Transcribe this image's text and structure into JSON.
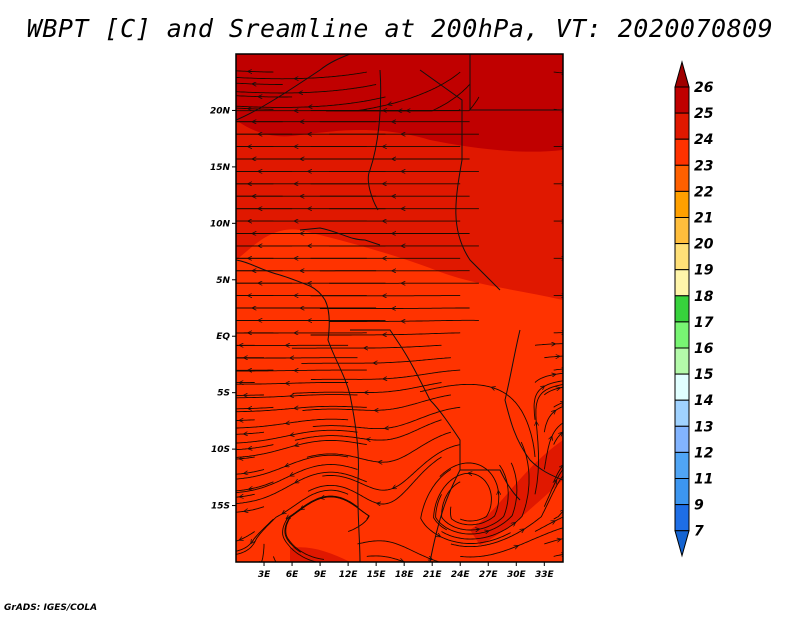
{
  "chart_data": {
    "type": "heatmap",
    "overlay": "streamlines",
    "title": "WBPT [C] and Sreamline at 200hPa, VT: 2020070809",
    "xlabel": "",
    "ylabel": "",
    "xlim": [
      0,
      35
    ],
    "ylim": [
      -20,
      25
    ],
    "x_ticks": [
      3,
      6,
      9,
      12,
      15,
      18,
      21,
      24,
      27,
      30,
      33
    ],
    "x_tick_labels": [
      "3E",
      "6E",
      "9E",
      "12E",
      "15E",
      "18E",
      "21E",
      "24E",
      "27E",
      "30E",
      "33E"
    ],
    "y_ticks": [
      20,
      15,
      10,
      5,
      0,
      -5,
      -10,
      -15
    ],
    "y_tick_labels": [
      "20N",
      "15N",
      "10N",
      "5N",
      "EQ",
      "5S",
      "10S",
      "15S"
    ],
    "colorbar": {
      "labels": [
        "26",
        "25",
        "24",
        "23",
        "22",
        "21",
        "20",
        "19",
        "18",
        "17",
        "16",
        "15",
        "14",
        "13",
        "12",
        "11",
        "9",
        "7"
      ],
      "levels": [
        26,
        25,
        24,
        23,
        22,
        21,
        20,
        19,
        18,
        17,
        16,
        15,
        14,
        13,
        12,
        11,
        9,
        7
      ],
      "colors": [
        "#c00000",
        "#e01800",
        "#ff3200",
        "#ff6000",
        "#ffa000",
        "#ffbe3c",
        "#ffe078",
        "#fff5aa",
        "#37d23c",
        "#78f573",
        "#b4faaa",
        "#e1ffff",
        "#a0d2ff",
        "#82b4ff",
        "#50a5f5",
        "#3c96f0",
        "#1e6ee6"
      ],
      "over_color": "#a00000",
      "under_color": "#1464d2"
    },
    "field_colors": {
      "high": "#c00000",
      "mid": "#e01800",
      "low": "#ff3200"
    }
  },
  "footer": "GrADS: IGES/COLA"
}
